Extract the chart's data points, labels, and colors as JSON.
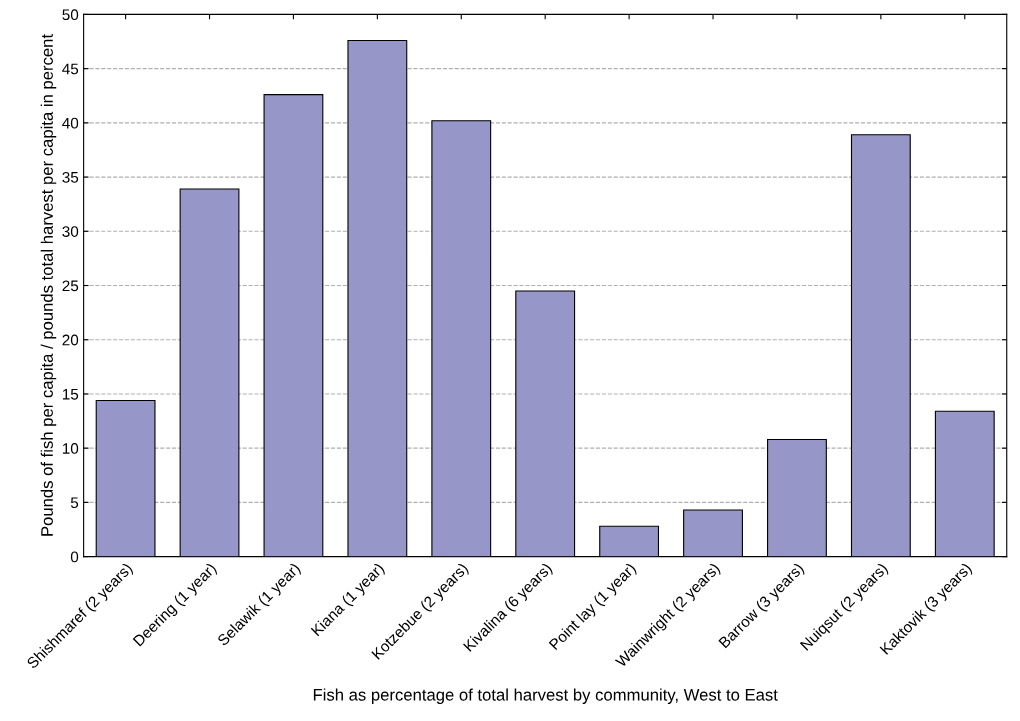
{
  "chart_data": {
    "type": "bar",
    "categories": [
      "Shishmaref (2 years)",
      "Deering (1 year)",
      "Selawik (1 year)",
      "Kiana (1 year)",
      "Kotzebue (2 years)",
      "Kivalina (6 years)",
      "Point lay (1 year)",
      "Wainwright (2 years)",
      "Barrow (3 years)",
      "Nuiqsut (2 years)",
      "Kaktovik (3 years)"
    ],
    "values": [
      14.4,
      33.9,
      42.6,
      47.6,
      40.2,
      24.5,
      2.8,
      4.3,
      10.8,
      38.9,
      13.4
    ],
    "color": "#9696c8",
    "xlabel": "Fish as percentage of total harvest by community, West to East",
    "ylabel": "Pounds of fish per capita / pounds total harvest per capita in percent",
    "ylim": [
      0,
      50
    ],
    "yticks": [
      0,
      5,
      10,
      15,
      20,
      25,
      30,
      35,
      40,
      45,
      50
    ],
    "grid": "y",
    "legend": false
  }
}
